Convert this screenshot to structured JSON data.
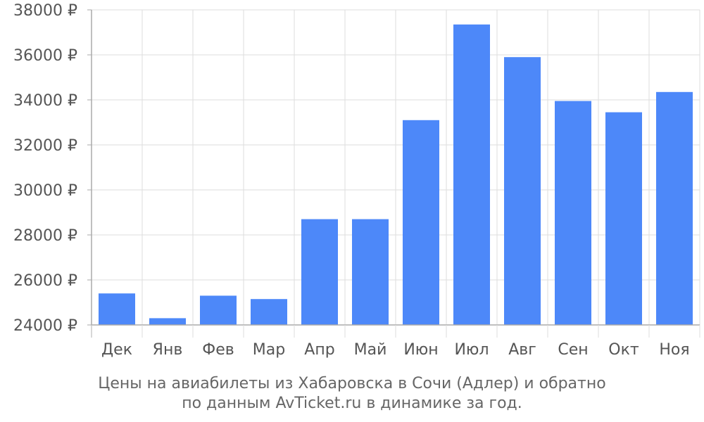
{
  "chart_data": {
    "type": "bar",
    "categories": [
      "Дек",
      "Янв",
      "Фев",
      "Мар",
      "Апр",
      "Май",
      "Июн",
      "Июл",
      "Авг",
      "Сен",
      "Окт",
      "Ноя"
    ],
    "values": [
      25400,
      24300,
      25300,
      25150,
      28700,
      28700,
      33100,
      37350,
      35900,
      33950,
      33450,
      34350
    ],
    "ylim": [
      24000,
      38000
    ],
    "yticks": [
      24000,
      26000,
      28000,
      30000,
      32000,
      34000,
      36000,
      38000
    ],
    "currency_symbol": "₽",
    "title_lines": [
      "Цены на авиабилеты из Хабаровска в Сочи (Адлер) и обратно",
      "по данным AvTicket.ru в динамике за год."
    ],
    "xlabel": "",
    "ylabel": "",
    "grid": true,
    "legend": "none",
    "bar_color": "#4d88f9",
    "grid_color": "#dddddd",
    "axis_color": "#aaaaaa"
  }
}
